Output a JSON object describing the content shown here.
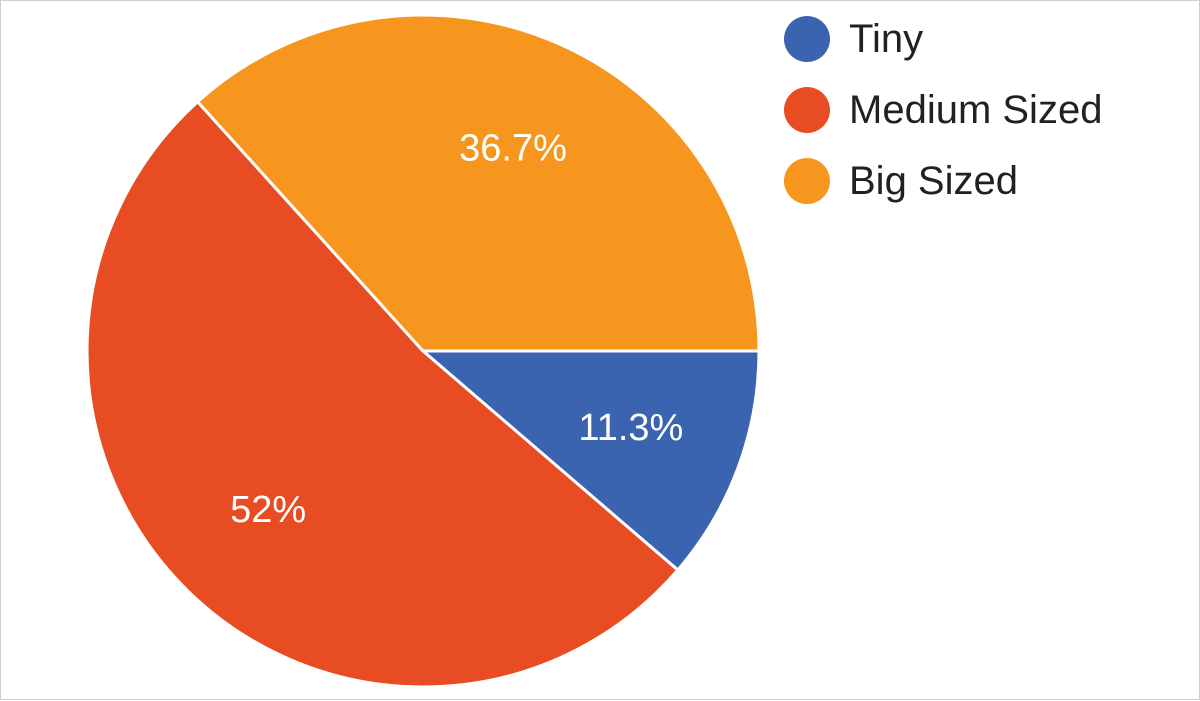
{
  "chart_data": {
    "type": "pie",
    "title": "",
    "start_angle_deg": 90,
    "direction": "clockwise",
    "legend_position": "right",
    "slices": [
      {
        "name": "Tiny",
        "value": 11.3,
        "label": "11.3%",
        "color": "#3a63b0"
      },
      {
        "name": "Medium Sized",
        "value": 52,
        "label": "52%",
        "color": "#e84c22"
      },
      {
        "name": "Big Sized",
        "value": 36.7,
        "label": "36.7%",
        "color": "#f7961e"
      }
    ]
  }
}
